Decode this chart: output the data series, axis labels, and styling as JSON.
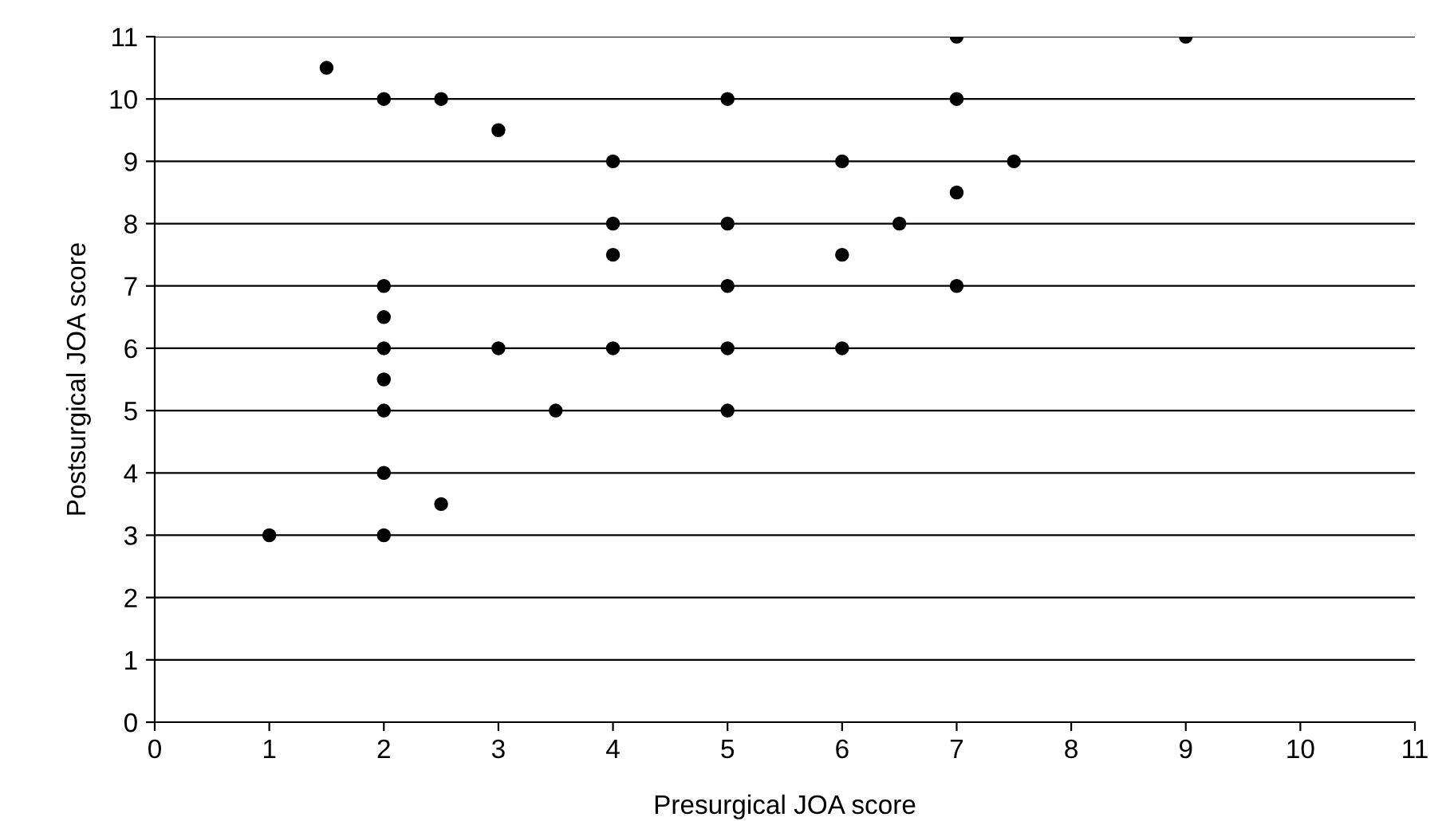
{
  "chart_data": {
    "type": "scatter",
    "xlabel": "Presurgical JOA score",
    "ylabel": "Postsurgical JOA score",
    "x": [
      1,
      1.5,
      2,
      2.5,
      3,
      2,
      2,
      2,
      2,
      2,
      2,
      2,
      2.5,
      3,
      3.5,
      4,
      4,
      4,
      4,
      5,
      5,
      5,
      5,
      5,
      6,
      6,
      6,
      6.5,
      7,
      7,
      7,
      7,
      7.5,
      9
    ],
    "series": [
      {
        "color": "#000000",
        "values": [
          3,
          10.5,
          10,
          10,
          9.5,
          7,
          6.5,
          6,
          5.5,
          5,
          4,
          3,
          3.5,
          6,
          5,
          9,
          8,
          7.5,
          6,
          10,
          8,
          7,
          6,
          5,
          9,
          7.5,
          6,
          8,
          11,
          10,
          8.5,
          7,
          9,
          11
        ]
      }
    ],
    "xlim": [
      0,
      11
    ],
    "ylim": [
      0,
      11
    ],
    "xticks": [
      0,
      1,
      2,
      3,
      4,
      5,
      6,
      7,
      8,
      9,
      10,
      11
    ],
    "yticks": [
      0,
      1,
      2,
      3,
      4,
      5,
      6,
      7,
      8,
      9,
      10,
      11
    ],
    "grid": "y",
    "marker": "circle",
    "legend": false
  }
}
